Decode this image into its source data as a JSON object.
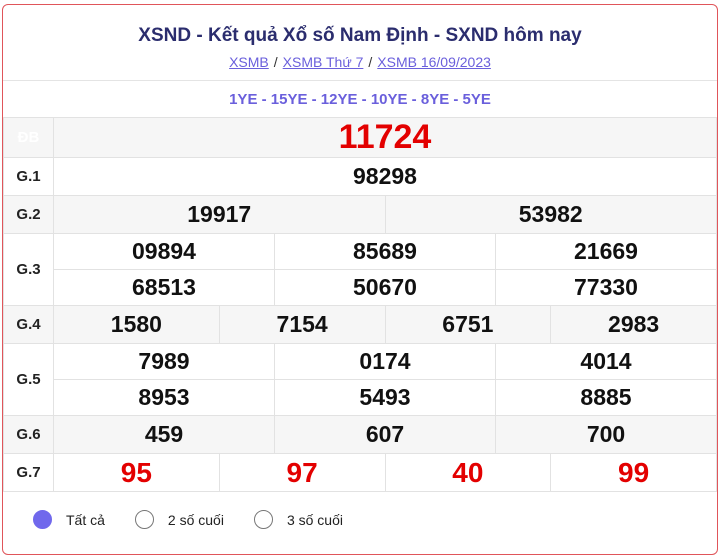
{
  "header": {
    "title": "XSND - Kết quả Xổ số Nam Định - SXND hôm nay",
    "breadcrumb": [
      "XSMB",
      "XSMB Thứ 7",
      "XSMB 16/09/2023"
    ],
    "separator": "/"
  },
  "codes": "1YE - 15YE - 12YE - 10YE - 8YE - 5YE",
  "prizes": {
    "db": {
      "label": "ĐB",
      "values": [
        "11724"
      ]
    },
    "g1": {
      "label": "G.1",
      "values": [
        "98298"
      ]
    },
    "g2": {
      "label": "G.2",
      "values": [
        "19917",
        "53982"
      ]
    },
    "g3": {
      "label": "G.3",
      "values": [
        "09894",
        "85689",
        "21669",
        "68513",
        "50670",
        "77330"
      ]
    },
    "g4": {
      "label": "G.4",
      "values": [
        "1580",
        "7154",
        "6751",
        "2983"
      ]
    },
    "g5": {
      "label": "G.5",
      "values": [
        "7989",
        "0174",
        "4014",
        "8953",
        "5493",
        "8885"
      ]
    },
    "g6": {
      "label": "G.6",
      "values": [
        "459",
        "607",
        "700"
      ]
    },
    "g7": {
      "label": "G.7",
      "values": [
        "95",
        "97",
        "40",
        "99"
      ]
    }
  },
  "filters": [
    {
      "label": "Tất cả",
      "selected": true
    },
    {
      "label": "2 số cuối",
      "selected": false
    },
    {
      "label": "3 số cuối",
      "selected": false
    }
  ],
  "colors": {
    "accent": "#6a5fdc",
    "special": "#e30000",
    "border": "#e0555a"
  }
}
